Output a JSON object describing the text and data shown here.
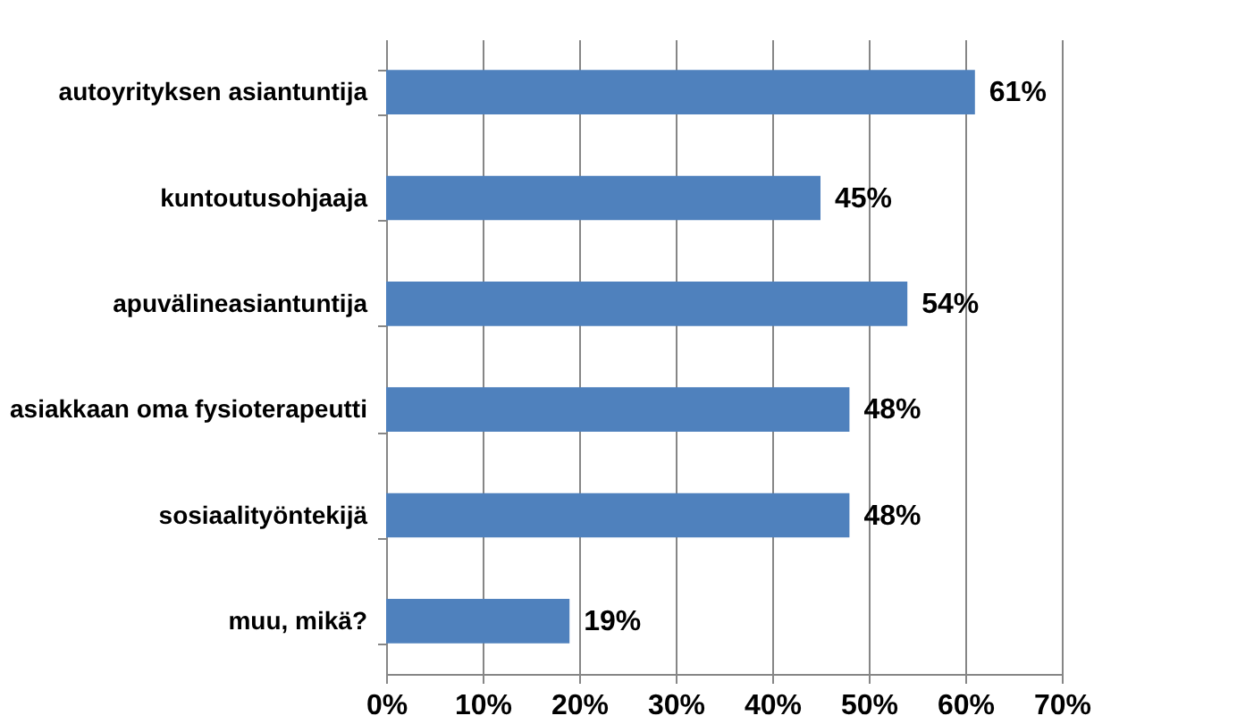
{
  "chart_data": {
    "type": "bar",
    "orientation": "horizontal",
    "categories": [
      "autoyrityksen asiantuntija",
      "kuntoutusohjaaja",
      "apuvälineasiantuntija",
      "asiakkaan oma fysioterapeutti",
      "sosiaalityöntekijä",
      "muu, mikä?"
    ],
    "values": [
      61,
      45,
      54,
      48,
      48,
      19
    ],
    "value_labels": [
      "61%",
      "45%",
      "54%",
      "48%",
      "48%",
      "19%"
    ],
    "color": "#4f81bd",
    "xlim": [
      0,
      70
    ],
    "xticks": [
      {
        "value": 0,
        "label": "0%"
      },
      {
        "value": 10,
        "label": "10%"
      },
      {
        "value": 20,
        "label": "20%"
      },
      {
        "value": 30,
        "label": "30%"
      },
      {
        "value": 40,
        "label": "40%"
      },
      {
        "value": 50,
        "label": "50%"
      },
      {
        "value": 60,
        "label": "60%"
      },
      {
        "value": 70,
        "label": "70%"
      }
    ],
    "grid": "x"
  }
}
